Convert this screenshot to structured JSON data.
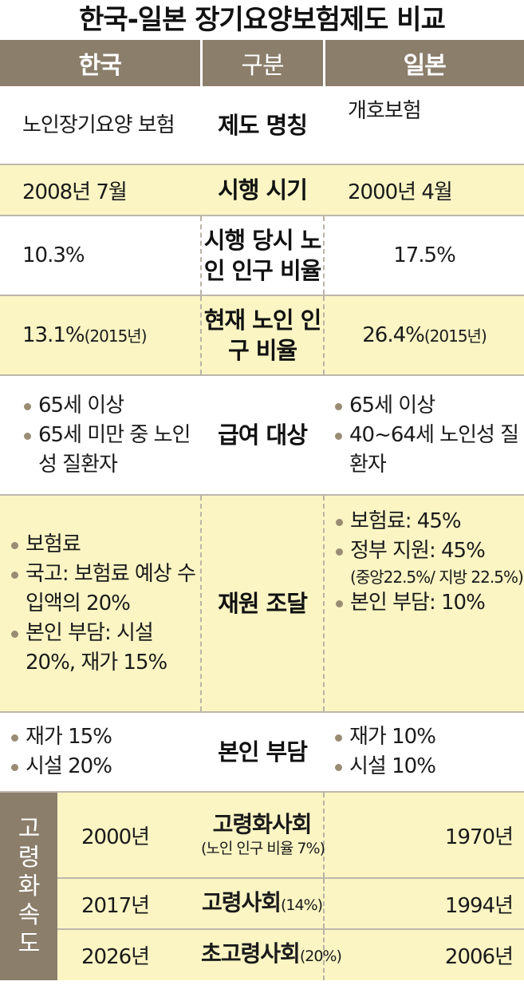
{
  "title": "한국-일본 장기요양보험제도 비교",
  "header": {
    "korea": "한국",
    "category": "구분",
    "japan": "일본"
  },
  "rows": [
    {
      "label": "제도 명칭",
      "korea": "노인장기요양 보험",
      "japan": "개호보험"
    },
    {
      "label": "시행 시기",
      "korea": "2008년 7월",
      "japan": "2000년 4월"
    },
    {
      "label": "시행 당시 노인 인구 비율",
      "korea": "10.3%",
      "japan": "17.5%"
    },
    {
      "label": "현재 노인 인구 비율",
      "korea": "13.1%",
      "korea_note": "(2015년)",
      "japan": "26.4%",
      "japan_note": "(2015년)"
    },
    {
      "label": "급여 대상",
      "korea": [
        "65세 이상",
        "65세 미만 중 노인성 질환자"
      ],
      "japan": [
        "65세 이상",
        "40~64세 노인성 질환자"
      ]
    },
    {
      "label": "재원 조달",
      "korea": [
        "보험료",
        "국고: 보험료 예상 수입액의 20%",
        "본인 부담: 시설 20%, 재가 15%"
      ],
      "japan": [
        "보험료: 45%",
        "정부 지원: 45%",
        "본인 부담: 10%"
      ],
      "japan_note": "(중앙22.5%/ 지방 22.5%)"
    },
    {
      "label": "본인 부담",
      "korea": [
        "재가 15%",
        "시설 20%"
      ],
      "japan": [
        "재가 10%",
        "시설 10%"
      ]
    }
  ],
  "speed": {
    "label": [
      "고",
      "령",
      "화",
      "속",
      "도"
    ],
    "rows": [
      {
        "label": "고령화사회",
        "note": "(노인 인구 비율 7%)",
        "korea": "2000년",
        "japan": "1970년"
      },
      {
        "label": "고령사회",
        "note": "(14%)",
        "korea": "2017년",
        "japan": "1994년"
      },
      {
        "label": "초고령사회",
        "note": "(20%)",
        "korea": "2026년",
        "japan": "2006년"
      }
    ]
  }
}
